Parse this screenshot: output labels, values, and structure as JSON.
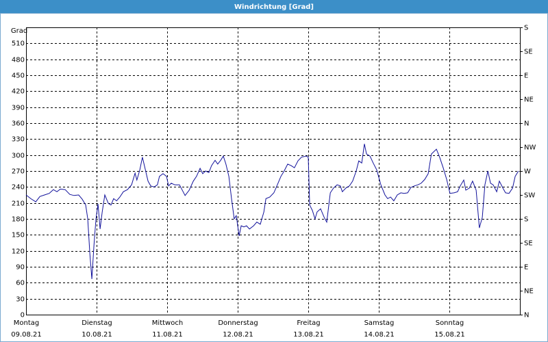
{
  "chart_data": {
    "type": "line",
    "title": "Windrichtung [Grad]",
    "y_label": "Grad",
    "color": "#10109a",
    "grid": true,
    "xlim": [
      0,
      168
    ],
    "xticks": [
      {
        "value": 0,
        "label": [
          "Montag",
          "09.08.21"
        ]
      },
      {
        "value": 24,
        "label": [
          "Dienstag",
          "10.08.21"
        ]
      },
      {
        "value": 48,
        "label": [
          "Mittwoch",
          "11.08.21"
        ]
      },
      {
        "value": 72,
        "label": [
          "Donnerstag",
          "12.08.21"
        ]
      },
      {
        "value": 96,
        "label": [
          "Freitag",
          "13.08.21"
        ]
      },
      {
        "value": 120,
        "label": [
          "Samstag",
          "14.08.21"
        ]
      },
      {
        "value": 144,
        "label": [
          "Sonntag",
          "15.08.21"
        ]
      }
    ],
    "ylim": [
      0,
      540
    ],
    "yticks": [
      0,
      30,
      60,
      90,
      120,
      150,
      180,
      210,
      240,
      270,
      300,
      330,
      360,
      390,
      420,
      450,
      480,
      510
    ],
    "y2lim": [
      0,
      540
    ],
    "y2ticks": [
      {
        "value": 0,
        "label": "N"
      },
      {
        "value": 45,
        "label": "NE"
      },
      {
        "value": 90,
        "label": "E"
      },
      {
        "value": 135,
        "label": "SE"
      },
      {
        "value": 180,
        "label": "S"
      },
      {
        "value": 225,
        "label": "SW"
      },
      {
        "value": 270,
        "label": "W"
      },
      {
        "value": 315,
        "label": "NW"
      },
      {
        "value": 360,
        "label": "N"
      },
      {
        "value": 405,
        "label": "NE"
      },
      {
        "value": 450,
        "label": "E"
      },
      {
        "value": 495,
        "label": "SE"
      },
      {
        "value": 540,
        "label": "S"
      }
    ],
    "x": [
      0,
      1.6,
      3.3,
      4.7,
      6.3,
      7.9,
      9.3,
      10.5,
      11.7,
      13.3,
      14.9,
      16.3,
      17.9,
      19.1,
      20.3,
      21,
      21.7,
      22.4,
      23.1,
      23.8,
      24.5,
      25.2,
      25.9,
      26.8,
      28,
      28.9,
      29.8,
      30.8,
      31.9,
      33.1,
      34.5,
      35.9,
      37.1,
      37.7,
      38.7,
      39.6,
      40.3,
      41.5,
      42.4,
      43.6,
      44.7,
      45.4,
      46.6,
      47.8,
      48.5,
      49.4,
      50.6,
      52.2,
      54.1,
      55.5,
      56.9,
      58,
      59.2,
      60.1,
      61.1,
      62.2,
      63.1,
      64.3,
      65.2,
      66.2,
      67.1,
      68,
      69,
      69.9,
      70.8,
      71.5,
      72.5,
      73.2,
      74.1,
      75,
      76,
      77.4,
      78.5,
      79.7,
      80.9,
      81.6,
      82.9,
      84.3,
      85.5,
      86.7,
      87.8,
      89,
      90.2,
      91.3,
      92.5,
      93.7,
      95.3,
      96,
      96.5,
      97.4,
      98.3,
      99,
      100.2,
      101.4,
      102.3,
      103.5,
      104.6,
      105.8,
      106.9,
      107.6,
      108.8,
      110,
      111.1,
      112.3,
      113.2,
      114.2,
      115.1,
      115.8,
      117,
      118.1,
      119.3,
      120.7,
      122.1,
      123,
      124,
      125.1,
      126.3,
      127.5,
      128.6,
      129.8,
      130.9,
      132.1,
      133.3,
      134.4,
      135.6,
      136.8,
      137.9,
      139.6,
      140.7,
      141.9,
      143.1,
      144.2,
      145.6,
      146.8,
      147.7,
      148.9,
      149.6,
      150.8,
      151.9,
      153.1,
      154.2,
      155.2,
      156.1,
      157.1,
      158,
      158.9,
      160.1,
      161,
      162.2,
      163.1,
      164.3,
      165.5,
      166.4,
      167.5
    ],
    "values": [
      225,
      218,
      212,
      222,
      225,
      228,
      235,
      231,
      236,
      235,
      226,
      224,
      225,
      217,
      206,
      180,
      116,
      67,
      129,
      180,
      208,
      161,
      193,
      225,
      209,
      206,
      218,
      214,
      221,
      231,
      235,
      244,
      266,
      253,
      272,
      296,
      279,
      251,
      242,
      240,
      244,
      260,
      265,
      260,
      242,
      247,
      244,
      244,
      224,
      234,
      251,
      260,
      275,
      265,
      270,
      267,
      280,
      290,
      283,
      290,
      298,
      283,
      260,
      218,
      180,
      186,
      148,
      167,
      165,
      167,
      161,
      167,
      174,
      170,
      193,
      218,
      221,
      229,
      244,
      260,
      270,
      283,
      280,
      276,
      289,
      296,
      298,
      296,
      206,
      196,
      180,
      193,
      199,
      183,
      174,
      229,
      238,
      244,
      242,
      231,
      238,
      242,
      251,
      270,
      289,
      285,
      321,
      302,
      298,
      285,
      272,
      244,
      225,
      218,
      221,
      214,
      225,
      229,
      228,
      229,
      239,
      242,
      244,
      247,
      254,
      265,
      302,
      311,
      296,
      276,
      254,
      228,
      229,
      231,
      242,
      253,
      234,
      238,
      251,
      234,
      163,
      183,
      244,
      270,
      247,
      244,
      231,
      251,
      238,
      229,
      228,
      238,
      260,
      270
    ]
  }
}
